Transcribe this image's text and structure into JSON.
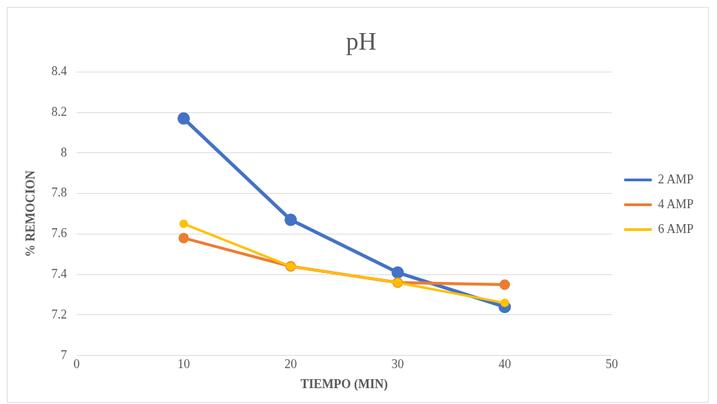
{
  "chart_data": {
    "type": "line",
    "title": "pH",
    "xlabel": "TIEMPO (MIN)",
    "ylabel": "% REMOCION",
    "x": [
      10,
      20,
      30,
      40
    ],
    "series": [
      {
        "name": "2 AMP",
        "color": "#4472c4",
        "values": [
          8.17,
          7.67,
          7.41,
          7.24
        ]
      },
      {
        "name": "4 AMP",
        "color": "#ed7d31",
        "values": [
          7.58,
          7.44,
          7.36,
          7.35
        ]
      },
      {
        "name": "6 AMP",
        "color": "#ffc000",
        "values": [
          7.65,
          7.44,
          7.36,
          7.26
        ]
      }
    ],
    "xlim": [
      0,
      50
    ],
    "xticks": [
      0,
      10,
      20,
      30,
      40,
      50
    ],
    "ylim": [
      7,
      8.4
    ],
    "yticks": [
      7,
      7.2,
      7.4,
      7.6,
      7.8,
      8,
      8.2,
      8.4
    ],
    "grid": "y",
    "legend": "right",
    "marker": "circle",
    "line_style": "solid"
  }
}
